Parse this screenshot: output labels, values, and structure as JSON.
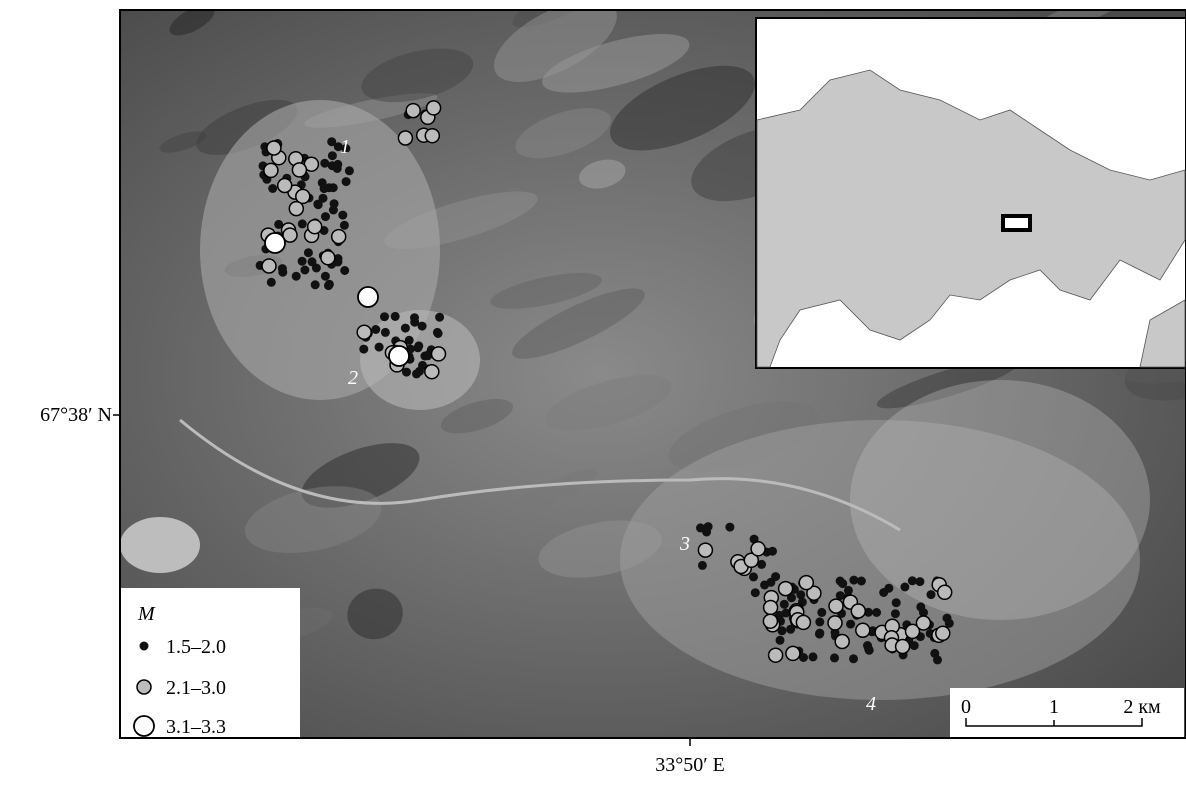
{
  "map": {
    "axis_labels": {
      "y": "67°38′ N",
      "x": "33°50′ E"
    },
    "site_labels": [
      "1",
      "2",
      "3",
      "4"
    ],
    "legend": {
      "title": "M",
      "items": [
        "1.5–2.0",
        "2.1–3.0",
        "3.1–3.3"
      ]
    },
    "scale_bar": {
      "ticks": [
        "0",
        "1",
        "2 км"
      ]
    }
  }
}
